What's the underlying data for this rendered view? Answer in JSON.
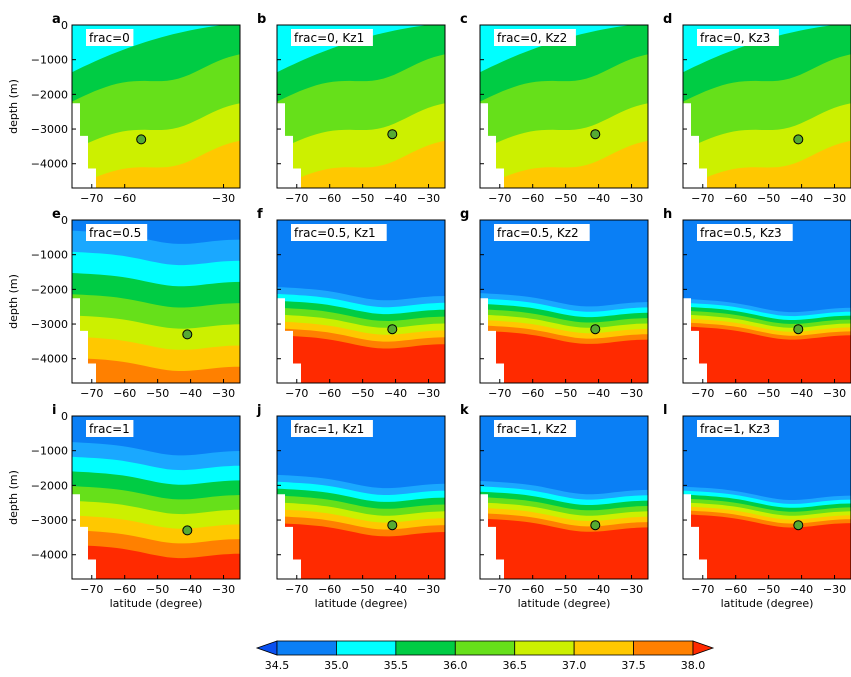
{
  "figure": {
    "ylabel": "depth (m)",
    "xlabel": "latitude (degree)"
  },
  "colorbar": {
    "ticks": [
      "34.5",
      "35.0",
      "35.5",
      "36.0",
      "36.5",
      "37.0",
      "37.5",
      "38.0"
    ],
    "colors": [
      "#0a7ff5",
      "#1aa8ff",
      "#00ffff",
      "#00cc44",
      "#66e01a",
      "#ccf000",
      "#ffc800",
      "#ff8000",
      "#ff2a00"
    ]
  },
  "chart_data": [
    {
      "letter": "a",
      "title": "frac=0",
      "type": "contour",
      "xticks": [
        "-70",
        "-60",
        "-30"
      ],
      "ylim": [
        -4700,
        0
      ],
      "yticks": [
        "0",
        "−1000",
        "−2000",
        "−3000",
        "−4000"
      ],
      "marker": {
        "lat": -55,
        "depth": -3300
      },
      "levels": [
        2,
        3,
        4,
        5
      ]
    },
    {
      "letter": "b",
      "title": "frac=0, Kz1",
      "type": "contour",
      "xticks": [
        "-70",
        "-60",
        "-50",
        "-40",
        "-30"
      ],
      "ylim": [
        -4700,
        0
      ],
      "marker": {
        "lat": -41,
        "depth": -3150
      },
      "levels": [
        2,
        3,
        4,
        5
      ]
    },
    {
      "letter": "c",
      "title": "frac=0, Kz2",
      "type": "contour",
      "xticks": [
        "-70",
        "-60",
        "-50",
        "-40",
        "-30"
      ],
      "ylim": [
        -4700,
        0
      ],
      "marker": {
        "lat": -41,
        "depth": -3150
      },
      "levels": [
        2,
        3,
        4,
        5
      ]
    },
    {
      "letter": "d",
      "title": "frac=0, Kz3",
      "type": "contour",
      "xticks": [
        "-70",
        "-60",
        "-50",
        "-40",
        "-30"
      ],
      "ylim": [
        -4700,
        0
      ],
      "marker": {
        "lat": -41,
        "depth": -3300
      },
      "levels": [
        2,
        3,
        4,
        5
      ]
    },
    {
      "letter": "e",
      "title": "frac=0.5",
      "type": "contour",
      "xticks": [
        "-70",
        "-60",
        "-50",
        "-40",
        "-30"
      ],
      "ylim": [
        -4700,
        0
      ],
      "yticks": [
        "0",
        "−1000",
        "−2000",
        "−3000",
        "−4000"
      ],
      "marker": {
        "lat": -41,
        "depth": -3300
      },
      "levels": [
        0,
        1,
        2,
        3,
        4,
        5,
        6,
        7
      ]
    },
    {
      "letter": "f",
      "title": "frac=0.5, Kz1",
      "type": "contour",
      "xticks": [
        "-70",
        "-60",
        "-50",
        "-40",
        "-30"
      ],
      "ylim": [
        -4700,
        0
      ],
      "marker": {
        "lat": -41,
        "depth": -3150
      },
      "levels": [
        0,
        1,
        2,
        3,
        4,
        5,
        6,
        7,
        8
      ]
    },
    {
      "letter": "g",
      "title": "frac=0.5, Kz2",
      "type": "contour",
      "xticks": [
        "-70",
        "-60",
        "-50",
        "-40",
        "-30"
      ],
      "ylim": [
        -4700,
        0
      ],
      "marker": {
        "lat": -41,
        "depth": -3150
      },
      "levels": [
        0,
        1,
        2,
        3,
        4,
        5,
        6,
        7,
        8
      ]
    },
    {
      "letter": "h",
      "title": "frac=0.5, Kz3",
      "type": "contour",
      "xticks": [
        "-70",
        "-60",
        "-50",
        "-40",
        "-30"
      ],
      "ylim": [
        -4700,
        0
      ],
      "marker": {
        "lat": -41,
        "depth": -3150
      },
      "levels": [
        0,
        1,
        2,
        3,
        4,
        5,
        6,
        7,
        8
      ]
    },
    {
      "letter": "i",
      "title": "frac=1",
      "type": "contour",
      "xticks": [
        "-70",
        "-60",
        "-50",
        "-40",
        "-30"
      ],
      "ylim": [
        -4700,
        0
      ],
      "yticks": [
        "0",
        "−1000",
        "−2000",
        "−3000",
        "−4000"
      ],
      "marker": {
        "lat": -41,
        "depth": -3300
      },
      "levels": [
        0,
        1,
        2,
        3,
        4,
        5,
        6,
        7,
        8
      ]
    },
    {
      "letter": "j",
      "title": "frac=1, Kz1",
      "type": "contour",
      "xticks": [
        "-70",
        "-60",
        "-50",
        "-40",
        "-30"
      ],
      "ylim": [
        -4700,
        0
      ],
      "marker": {
        "lat": -41,
        "depth": -3150
      },
      "levels": [
        0,
        1,
        2,
        3,
        4,
        5,
        6,
        7,
        8
      ]
    },
    {
      "letter": "k",
      "title": "frac=1, Kz2",
      "type": "contour",
      "xticks": [
        "-70",
        "-60",
        "-50",
        "-40",
        "-30"
      ],
      "ylim": [
        -4700,
        0
      ],
      "marker": {
        "lat": -41,
        "depth": -3150
      },
      "levels": [
        0,
        1,
        2,
        3,
        4,
        5,
        6,
        7,
        8
      ]
    },
    {
      "letter": "l",
      "title": "frac=1, Kz3",
      "type": "contour",
      "xticks": [
        "-70",
        "-60",
        "-50",
        "-40",
        "-30"
      ],
      "ylim": [
        -4700,
        0
      ],
      "marker": {
        "lat": -41,
        "depth": -3150
      },
      "levels": [
        0,
        1,
        2,
        3,
        4,
        5,
        6,
        7,
        8
      ]
    }
  ]
}
